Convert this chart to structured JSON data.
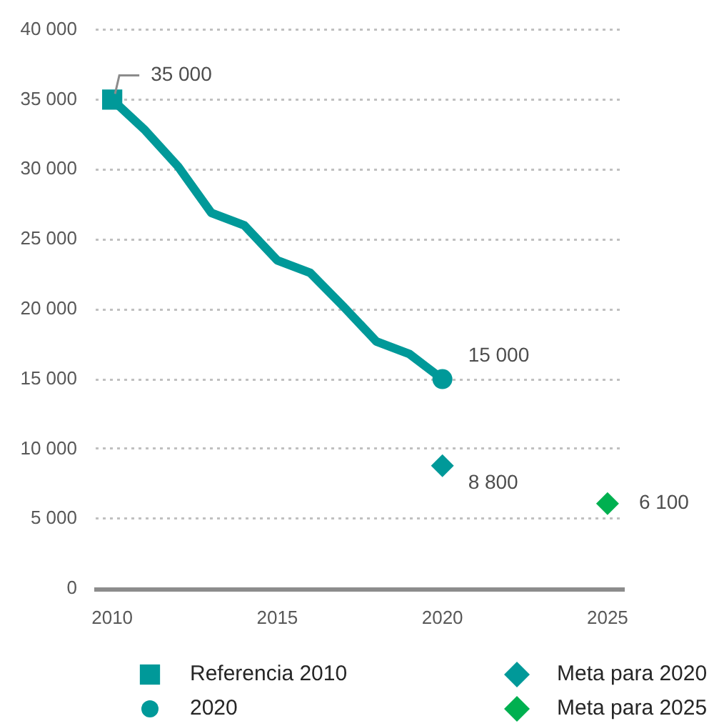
{
  "chart_data": {
    "type": "line",
    "xlim": [
      2009.5,
      2025.5
    ],
    "xticks": [
      2010,
      2015,
      2020,
      2025
    ],
    "ylim": [
      0,
      40000
    ],
    "yticks": [
      0,
      {
        "value": 5000,
        "label": "5 000"
      },
      {
        "value": 10000,
        "label": "10 000"
      },
      {
        "value": 15000,
        "label": "15 000"
      },
      {
        "value": 20000,
        "label": "20 000"
      },
      {
        "value": 25000,
        "label": "25 000"
      },
      {
        "value": 30000,
        "label": "30 000"
      },
      {
        "value": 35000,
        "label": "35 000"
      },
      {
        "value": 40000,
        "label": "40 000"
      }
    ],
    "grid": "y",
    "legend": "bottom",
    "series": [
      {
        "color": "#009999",
        "marker": "none",
        "x": [
          2010,
          2011,
          2012,
          2013,
          2014,
          2015,
          2016,
          2017,
          2018,
          2019,
          2020
        ],
        "values": [
          35000,
          32800,
          30200,
          26900,
          26000,
          23500,
          22600,
          20200,
          17700,
          16800,
          15000
        ]
      },
      {
        "type": "scatter",
        "name": "Referencia 2010",
        "color": "#009999",
        "marker": "square",
        "x": [
          2010
        ],
        "values": [
          35000
        ],
        "value_labels": [
          "35 000"
        ]
      },
      {
        "type": "scatter",
        "name": "2020",
        "color": "#009999",
        "marker": "circle",
        "x": [
          2020
        ],
        "values": [
          15000
        ],
        "value_labels": [
          "15 000"
        ]
      },
      {
        "type": "scatter",
        "name": "Meta para 2020",
        "color": "#009999",
        "marker": "diamond",
        "x": [
          2020
        ],
        "values": [
          8800
        ],
        "value_labels": [
          "8 800"
        ]
      },
      {
        "type": "scatter",
        "name": "Meta para 2025",
        "color": "#00b050",
        "marker": "diamond",
        "x": [
          2025
        ],
        "values": [
          6100
        ],
        "value_labels": [
          "6 100"
        ]
      }
    ]
  }
}
